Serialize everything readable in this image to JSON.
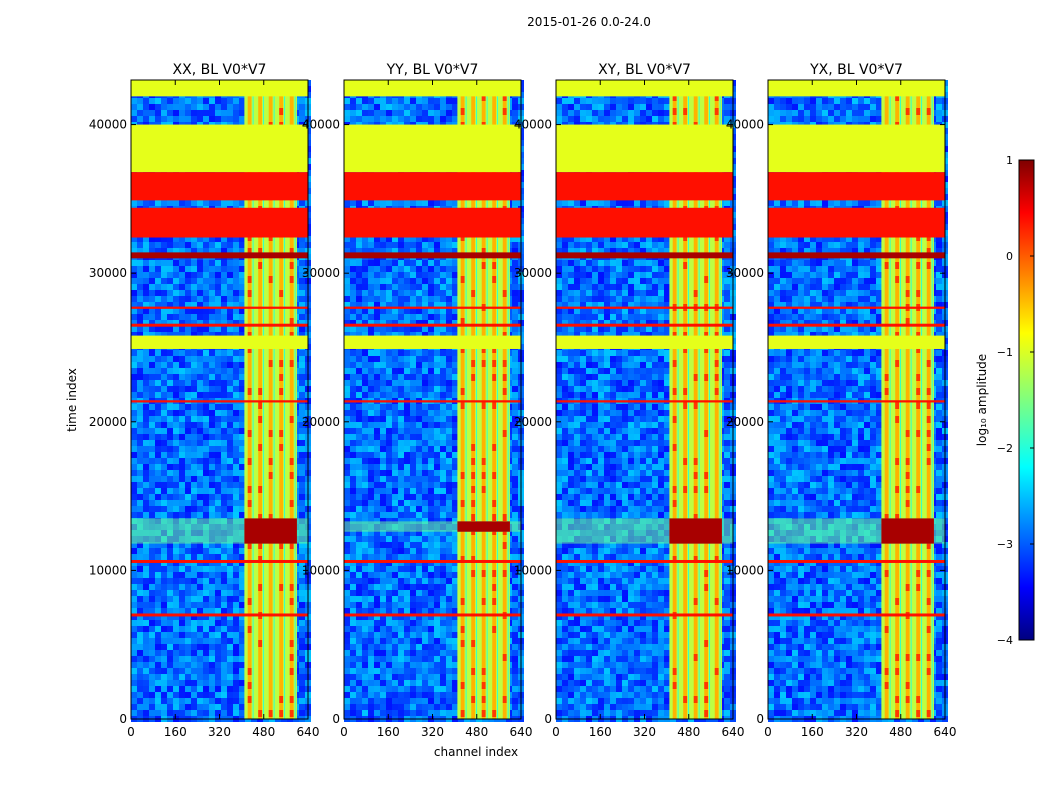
{
  "chart_data": {
    "type": "heatmap",
    "title": "2015-01-26 0.0-24.0",
    "xlabel": "channel index",
    "ylabel": "time index",
    "xlim": [
      0,
      640
    ],
    "ylim": [
      0,
      43000
    ],
    "x_ticks": [
      "0",
      "160",
      "320",
      "480",
      "640"
    ],
    "x_tick_values": [
      0,
      160,
      320,
      480,
      640
    ],
    "y_ticks": [
      "0",
      "10000",
      "20000",
      "30000",
      "40000"
    ],
    "y_tick_values": [
      0,
      10000,
      20000,
      30000,
      40000
    ],
    "panels": [
      {
        "title": "XX, BL V0*V7",
        "strong_band": [
          11800,
          13500
        ]
      },
      {
        "title": "YY, BL V0*V7",
        "strong_band": [
          12600,
          13300
        ]
      },
      {
        "title": "XY, BL V0*V7",
        "strong_band": [
          11800,
          13500
        ]
      },
      {
        "title": "YX, BL V0*V7",
        "strong_band": [
          11800,
          13500
        ]
      }
    ],
    "band_region_channels": [
      410,
      600
    ],
    "flagged_rows": [
      {
        "from": 41900,
        "to": 43000,
        "level": -1.0
      },
      {
        "from": 36800,
        "to": 40000,
        "level": -1.0
      },
      {
        "from": 34900,
        "to": 36800,
        "level": 0.3
      },
      {
        "from": 32400,
        "to": 34400,
        "level": 0.3
      },
      {
        "from": 31000,
        "to": 31400,
        "level": 0.8
      },
      {
        "from": 24900,
        "to": 25800,
        "level": -1.0
      },
      {
        "from": 6900,
        "to": 7100,
        "level": 0.3
      },
      {
        "from": 10500,
        "to": 10700,
        "level": 0.3
      },
      {
        "from": 21300,
        "to": 21450,
        "level": 0.3
      },
      {
        "from": 26400,
        "to": 26600,
        "level": 0.3
      },
      {
        "from": 27600,
        "to": 27750,
        "level": 0.3
      }
    ],
    "colorbar": {
      "label": "log₁₀ amplitude",
      "min": -4,
      "max": 1,
      "ticks": [
        "1",
        "0",
        "−1",
        "−2",
        "−3",
        "−4"
      ],
      "tick_values": [
        1,
        0,
        -1,
        -2,
        -3,
        -4
      ],
      "colormap": "jet"
    }
  }
}
